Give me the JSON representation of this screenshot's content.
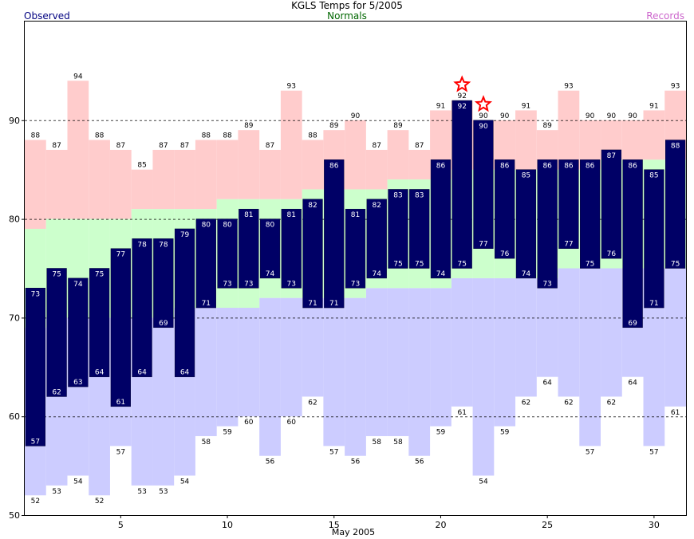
{
  "title": "KGLS Temps for 5/2005",
  "legend": {
    "observed": "Observed",
    "normals": "Normals",
    "records": "Records"
  },
  "colors": {
    "observed": "#000066",
    "observed_text": "#000080",
    "normals": "#006600",
    "normal_fill": "#ccffcc",
    "record_high_fill": "#ffcccc",
    "record_low_fill": "#ccccff",
    "records_text": "#cc66cc",
    "star": "#ff0000"
  },
  "chart_data": {
    "type": "bar",
    "xlabel": "May 2005",
    "ylabel": "",
    "x": [
      1,
      2,
      3,
      4,
      5,
      6,
      7,
      8,
      9,
      10,
      11,
      12,
      13,
      14,
      15,
      16,
      17,
      18,
      19,
      20,
      21,
      22,
      23,
      24,
      25,
      26,
      27,
      28,
      29,
      30,
      31
    ],
    "xticks": [
      5,
      10,
      15,
      20,
      25,
      30
    ],
    "yticks": [
      50,
      60,
      70,
      80,
      90
    ],
    "ylim": [
      50,
      100
    ],
    "grid": "dashed at 60, 70, 80, 90",
    "series": [
      {
        "name": "Observed high",
        "values": [
          73,
          75,
          74,
          75,
          77,
          78,
          78,
          79,
          80,
          80,
          81,
          80,
          81,
          82,
          86,
          81,
          82,
          83,
          83,
          86,
          92,
          90,
          86,
          85,
          86,
          86,
          86,
          87,
          86,
          85,
          88
        ]
      },
      {
        "name": "Observed low",
        "values": [
          57,
          62,
          63,
          64,
          61,
          64,
          69,
          64,
          71,
          73,
          73,
          74,
          73,
          71,
          71,
          73,
          74,
          75,
          75,
          74,
          75,
          77,
          76,
          74,
          73,
          77,
          75,
          76,
          69,
          71,
          75
        ]
      },
      {
        "name": "Record high",
        "values": [
          88,
          87,
          94,
          88,
          87,
          85,
          87,
          87,
          88,
          88,
          89,
          87,
          93,
          88,
          89,
          90,
          87,
          89,
          87,
          91,
          92,
          90,
          90,
          91,
          89,
          93,
          90,
          90,
          90,
          91,
          93
        ]
      },
      {
        "name": "Record low",
        "values": [
          52,
          53,
          54,
          52,
          57,
          53,
          53,
          54,
          58,
          59,
          60,
          56,
          60,
          62,
          57,
          56,
          58,
          58,
          56,
          59,
          61,
          54,
          59,
          62,
          64,
          62,
          57,
          62,
          64,
          57,
          61
        ]
      },
      {
        "name": "Normal high",
        "values": [
          79,
          80,
          80,
          80,
          80,
          81,
          81,
          81,
          81,
          82,
          82,
          82,
          82,
          83,
          83,
          83,
          83,
          84,
          84,
          84,
          85,
          85,
          85,
          85,
          85,
          85,
          85,
          86,
          86,
          86,
          86
        ]
      },
      {
        "name": "Normal low",
        "values": [
          69,
          70,
          70,
          70,
          70,
          70,
          70,
          71,
          71,
          71,
          71,
          72,
          72,
          72,
          72,
          72,
          73,
          73,
          73,
          73,
          74,
          74,
          74,
          74,
          74,
          75,
          75,
          75,
          75,
          75,
          75
        ]
      }
    ],
    "record_set_days": [
      21,
      22
    ]
  }
}
